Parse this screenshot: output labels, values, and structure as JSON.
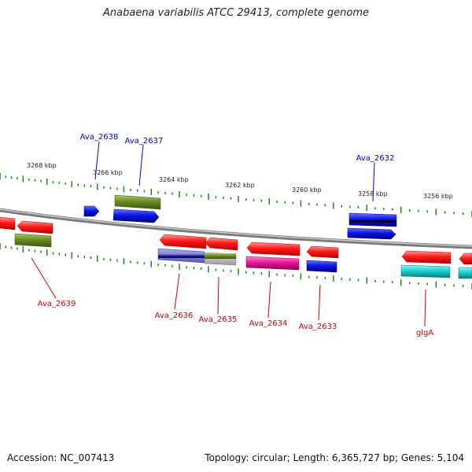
{
  "title": "Anabaena variabilis ATCC 29413, complete genome",
  "footer": {
    "accession": "Accession: NC_007413",
    "summary": "Topology: circular; Length: 6,365,727 bp; Genes: 5,104"
  },
  "scale_labels": [
    "3268 kbp",
    "3266 kbp",
    "3264 kbp",
    "3262 kbp",
    "3260 kbp",
    "3258 kbp",
    "3256 kbp"
  ],
  "forward_gene_labels": [
    "Ava_2638",
    "Ava_2637",
    "Ava_2632"
  ],
  "reverse_gene_labels": [
    "Ava_2639",
    "Ava_2636",
    "Ava_2635",
    "Ava_2634",
    "Ava_2633",
    "glgA"
  ],
  "colors": {
    "forward_label": "#0000cc",
    "reverse_label": "#cc0000",
    "backbone": "#888888",
    "ticks": "#1a8a1a",
    "red": "#ff1a1a",
    "blue": "#0a14e6",
    "olive": "#6b8e23",
    "navy": "#1a1a8c",
    "magenta": "#e6199a",
    "cyan": "#19d2d2"
  }
}
